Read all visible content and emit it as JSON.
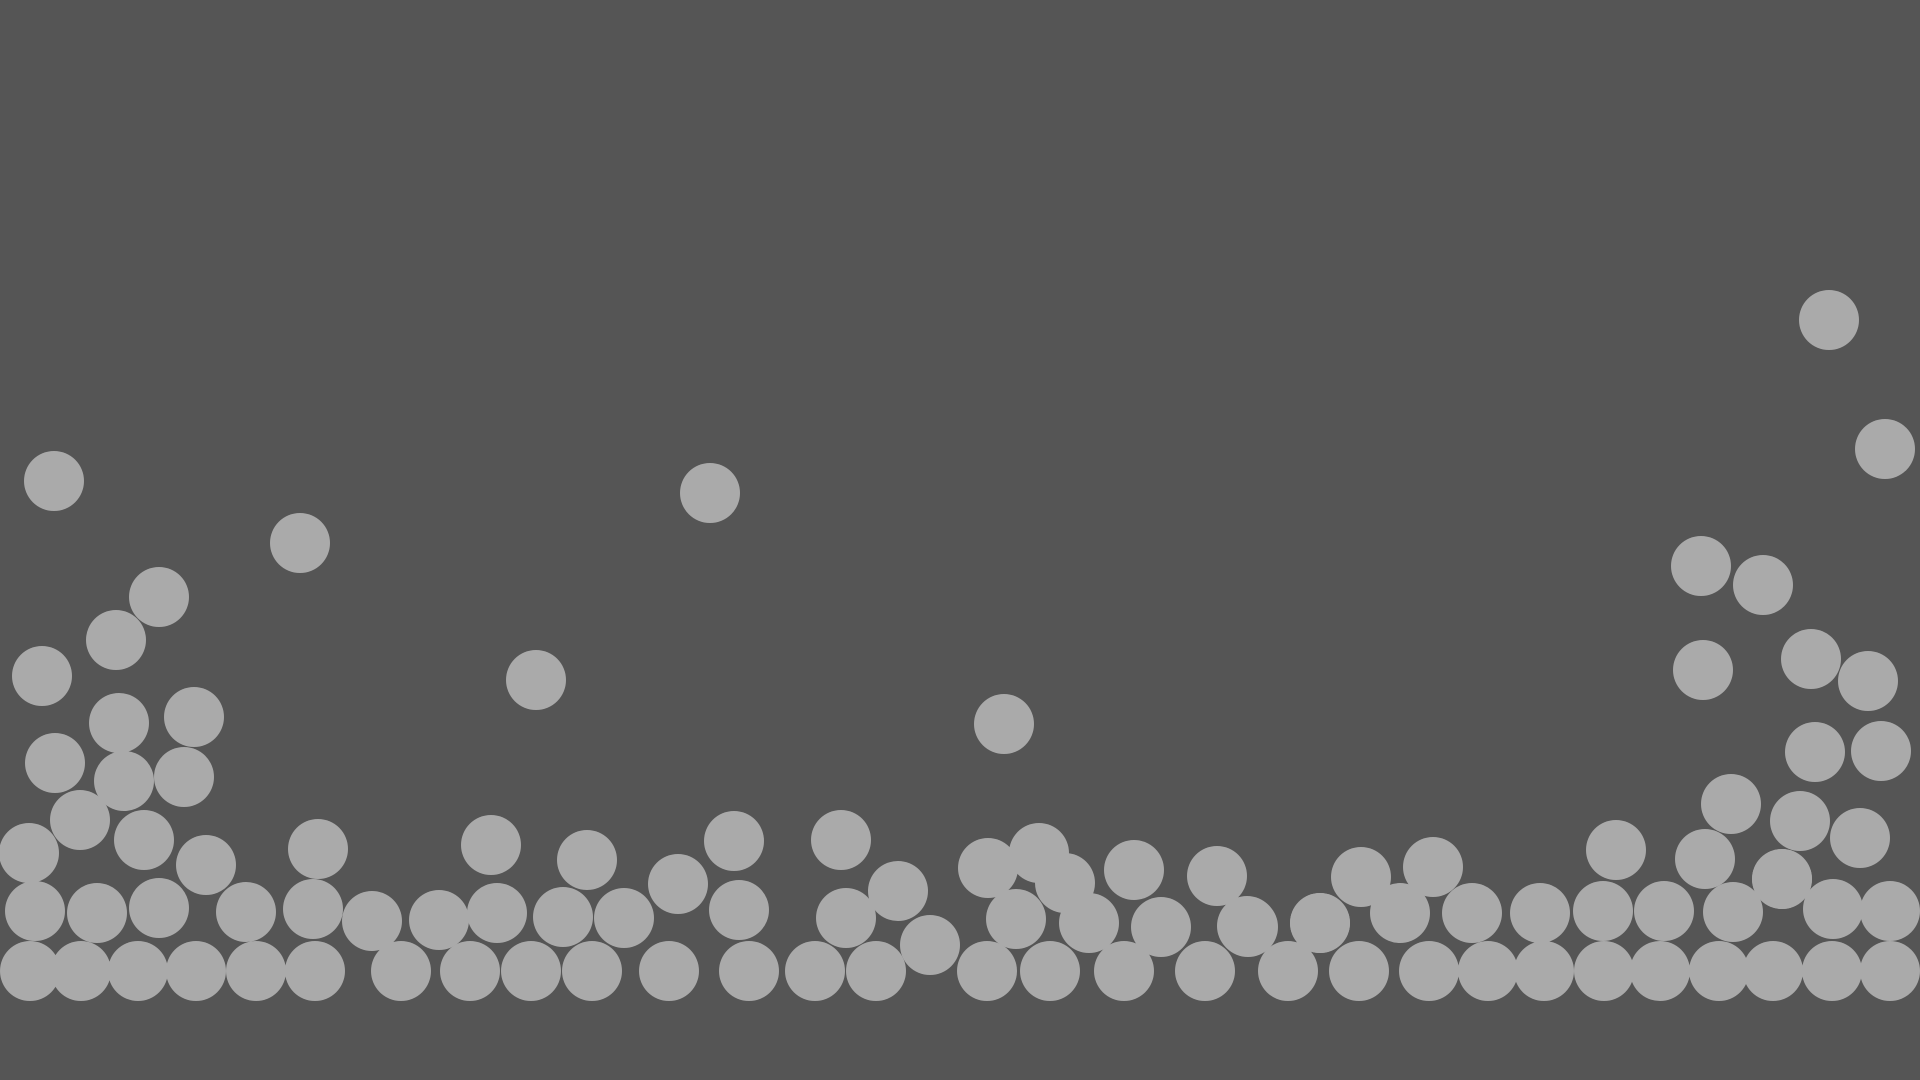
{
  "scene": {
    "background_color": "#555555",
    "ball_color": "#aaaaaa",
    "ball_count": 101
  }
}
